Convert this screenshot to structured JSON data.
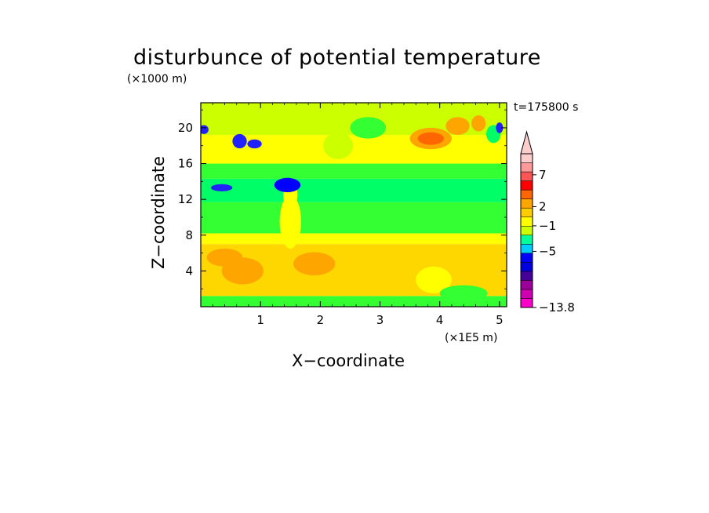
{
  "chart_data": {
    "type": "heatmap",
    "title": "disturbunce of potential temperature",
    "xlabel": "X−coordinate",
    "ylabel": "Z−coordinate",
    "x_unit_label": "(×1E5 m)",
    "y_unit_label": "(×1000 m)",
    "time_label": "t=175800  s",
    "xlim": [
      0,
      5.12
    ],
    "ylim": [
      0,
      22.8
    ],
    "x_ticks": [
      "1",
      "2",
      "3",
      "4",
      "5"
    ],
    "x_tick_values": [
      1,
      2,
      3,
      4,
      5
    ],
    "y_ticks": [
      "4",
      "8",
      "12",
      "16",
      "20"
    ],
    "y_tick_values": [
      4,
      8,
      12,
      16,
      20
    ],
    "bands": [
      {
        "z": [
          0,
          1.2
        ],
        "level": 5
      },
      {
        "z": [
          1.2,
          7.0
        ],
        "level": 8
      },
      {
        "z": [
          7.0,
          8.2
        ],
        "level": 7
      },
      {
        "z": [
          8.2,
          11.7
        ],
        "level": 5
      },
      {
        "z": [
          11.7,
          14.3
        ],
        "level": 4
      },
      {
        "z": [
          14.3,
          16.0
        ],
        "level": 5
      },
      {
        "z": [
          16.0,
          19.2
        ],
        "level": 7
      },
      {
        "z": [
          19.2,
          22.8
        ],
        "level": 6
      }
    ],
    "blobs": [
      {
        "x": 0.7,
        "z": 4.0,
        "rx": 0.35,
        "rz": 1.5,
        "level": 9
      },
      {
        "x": 1.9,
        "z": 4.8,
        "rx": 0.35,
        "rz": 1.3,
        "level": 9
      },
      {
        "x": 0.4,
        "z": 5.5,
        "rx": 0.3,
        "rz": 1.0,
        "level": 9
      },
      {
        "x": 4.6,
        "z": 3.8,
        "rx": 0.3,
        "rz": 1.0,
        "level": 8
      },
      {
        "x": 3.9,
        "z": 3.0,
        "rx": 0.3,
        "rz": 1.5,
        "level": 7
      },
      {
        "x": 4.4,
        "z": 1.5,
        "rx": 0.4,
        "rz": 0.9,
        "level": 5
      },
      {
        "x": 1.5,
        "z": 9.5,
        "rx": 0.18,
        "rz": 3.0,
        "level": 7
      },
      {
        "x": 1.5,
        "z": 12.5,
        "rx": 0.12,
        "rz": 1.5,
        "level": 7
      },
      {
        "x": 1.45,
        "z": 13.6,
        "rx": 0.22,
        "rz": 0.8,
        "level": 1
      },
      {
        "x": 0.35,
        "z": 13.3,
        "rx": 0.18,
        "rz": 0.4,
        "level": 2
      },
      {
        "x": 0.65,
        "z": 18.5,
        "rx": 0.12,
        "rz": 0.8,
        "level": 2
      },
      {
        "x": 0.9,
        "z": 18.2,
        "rx": 0.12,
        "rz": 0.5,
        "level": 2
      },
      {
        "x": 0.05,
        "z": 19.8,
        "rx": 0.08,
        "rz": 0.5,
        "level": 2
      },
      {
        "x": 3.85,
        "z": 18.8,
        "rx": 0.35,
        "rz": 1.2,
        "level": 9
      },
      {
        "x": 3.85,
        "z": 18.8,
        "rx": 0.22,
        "rz": 0.7,
        "level": 10
      },
      {
        "x": 4.3,
        "z": 20.2,
        "rx": 0.2,
        "rz": 1.0,
        "level": 9
      },
      {
        "x": 4.65,
        "z": 20.5,
        "rx": 0.12,
        "rz": 0.9,
        "level": 9
      },
      {
        "x": 2.3,
        "z": 18.0,
        "rx": 0.25,
        "rz": 1.5,
        "level": 6
      },
      {
        "x": 2.8,
        "z": 20.0,
        "rx": 0.3,
        "rz": 1.2,
        "level": 5
      },
      {
        "x": 4.9,
        "z": 19.3,
        "rx": 0.12,
        "rz": 1.0,
        "level": 4
      },
      {
        "x": 5.0,
        "z": 20.0,
        "rx": 0.06,
        "rz": 0.6,
        "level": 2
      }
    ],
    "colorbar": {
      "colors": [
        "#ff00cc",
        "#cc00b0",
        "#9b009b",
        "#440099",
        "#0000dd",
        "#0000ff",
        "#00ccff",
        "#00ff99",
        "#ccff00",
        "#ffff00",
        "#ffcc00",
        "#ffa500",
        "#ff6600",
        "#ff0000",
        "#ff5555",
        "#ff9999",
        "#ffcccc"
      ],
      "tick_labels": [
        "7",
        "2",
        "−1",
        "−5",
        "−13.8"
      ],
      "tick_values": [
        7,
        2,
        -1,
        -5,
        -13.8
      ],
      "extend": "max"
    },
    "field_colors": [
      "#cc00b0",
      "#0000ff",
      "#2222ff",
      "#00ffff",
      "#00ff66",
      "#33ff33",
      "#ccff00",
      "#ffff00",
      "#ffd700",
      "#ffa500",
      "#ff6600"
    ]
  }
}
